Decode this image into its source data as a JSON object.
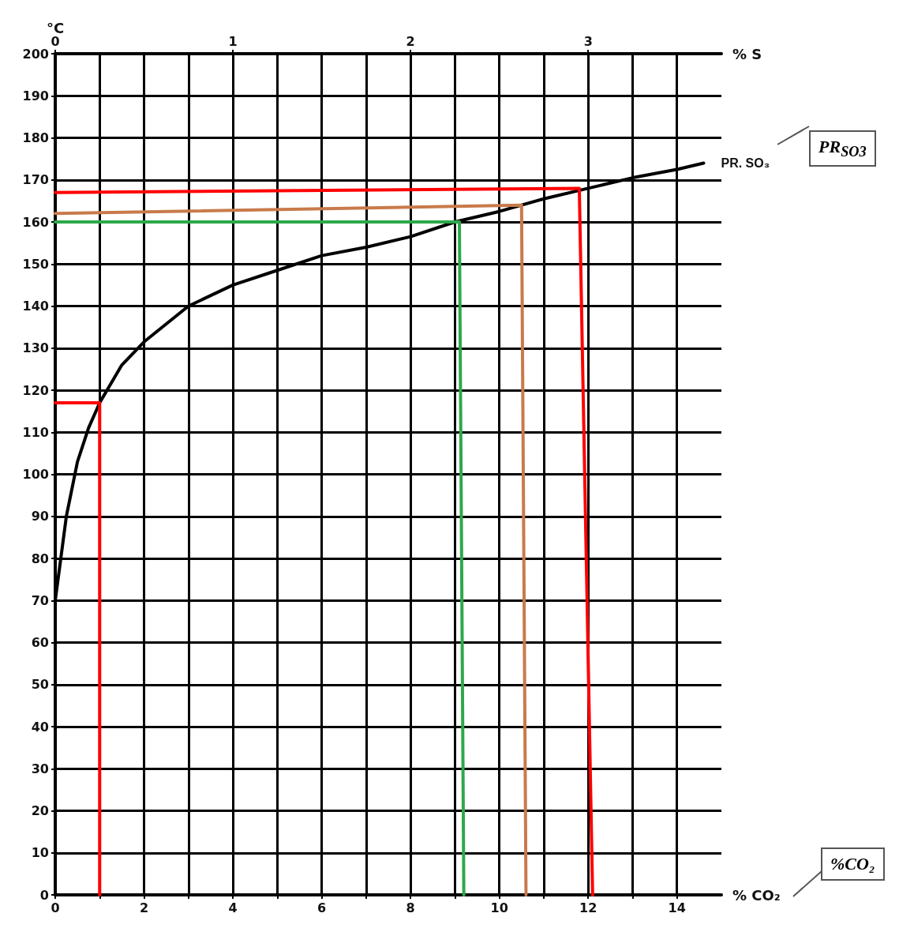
{
  "chart_data": {
    "type": "line",
    "xlabel": "% CO₂",
    "x2label": "% S",
    "ylabel": "°C",
    "annotations": [
      "PR$_{SO3}$",
      "%CO₂"
    ],
    "xlim": [
      0,
      15
    ],
    "xticks": [
      0,
      {
        "value": 1,
        "label": null
      },
      2,
      {
        "value": 3,
        "label": null
      },
      4,
      {
        "value": 5,
        "label": null
      },
      6,
      {
        "value": 7,
        "label": null
      },
      8,
      {
        "value": 9,
        "label": null
      },
      10,
      {
        "value": 11,
        "label": null
      },
      12,
      {
        "value": 13,
        "label": null
      },
      14
    ],
    "x2lim": [
      0,
      3.75
    ],
    "x2ticks": [
      0,
      1,
      2,
      3
    ],
    "ylim": [
      0,
      200
    ],
    "yticks": [
      0,
      10,
      20,
      30,
      40,
      50,
      60,
      70,
      80,
      90,
      100,
      110,
      120,
      130,
      140,
      150,
      160,
      170,
      180,
      190,
      200
    ],
    "grid": true,
    "line_style": "solid",
    "series": [
      {
        "name": "PR. SO₃",
        "color": "#000000",
        "x": [
          0,
          0.1,
          0.25,
          0.5,
          0.75,
          1,
          1.5,
          2,
          3,
          4,
          5,
          6,
          7,
          8,
          9,
          10,
          11,
          12,
          13,
          14,
          14.6
        ],
        "values": [
          70,
          78,
          90,
          103,
          111,
          117,
          126,
          131.5,
          140,
          145,
          148.5,
          152,
          154,
          156.5,
          160,
          162.5,
          165.5,
          168,
          170.5,
          172.5,
          174
        ]
      },
      {
        "color": "#ff0000",
        "x": [
          0,
          1,
          1
        ],
        "values": [
          117,
          117,
          0
        ]
      },
      {
        "color": "#ff0000",
        "x": [
          0,
          11.8,
          12.1
        ],
        "values": [
          167,
          168,
          0
        ]
      },
      {
        "color": "#c97a4a",
        "x": [
          0,
          10.5,
          10.6
        ],
        "values": [
          162,
          164,
          0
        ]
      },
      {
        "color": "#2ea84a",
        "x": [
          0,
          9.1,
          9.2
        ],
        "values": [
          160,
          160,
          0
        ]
      }
    ]
  }
}
